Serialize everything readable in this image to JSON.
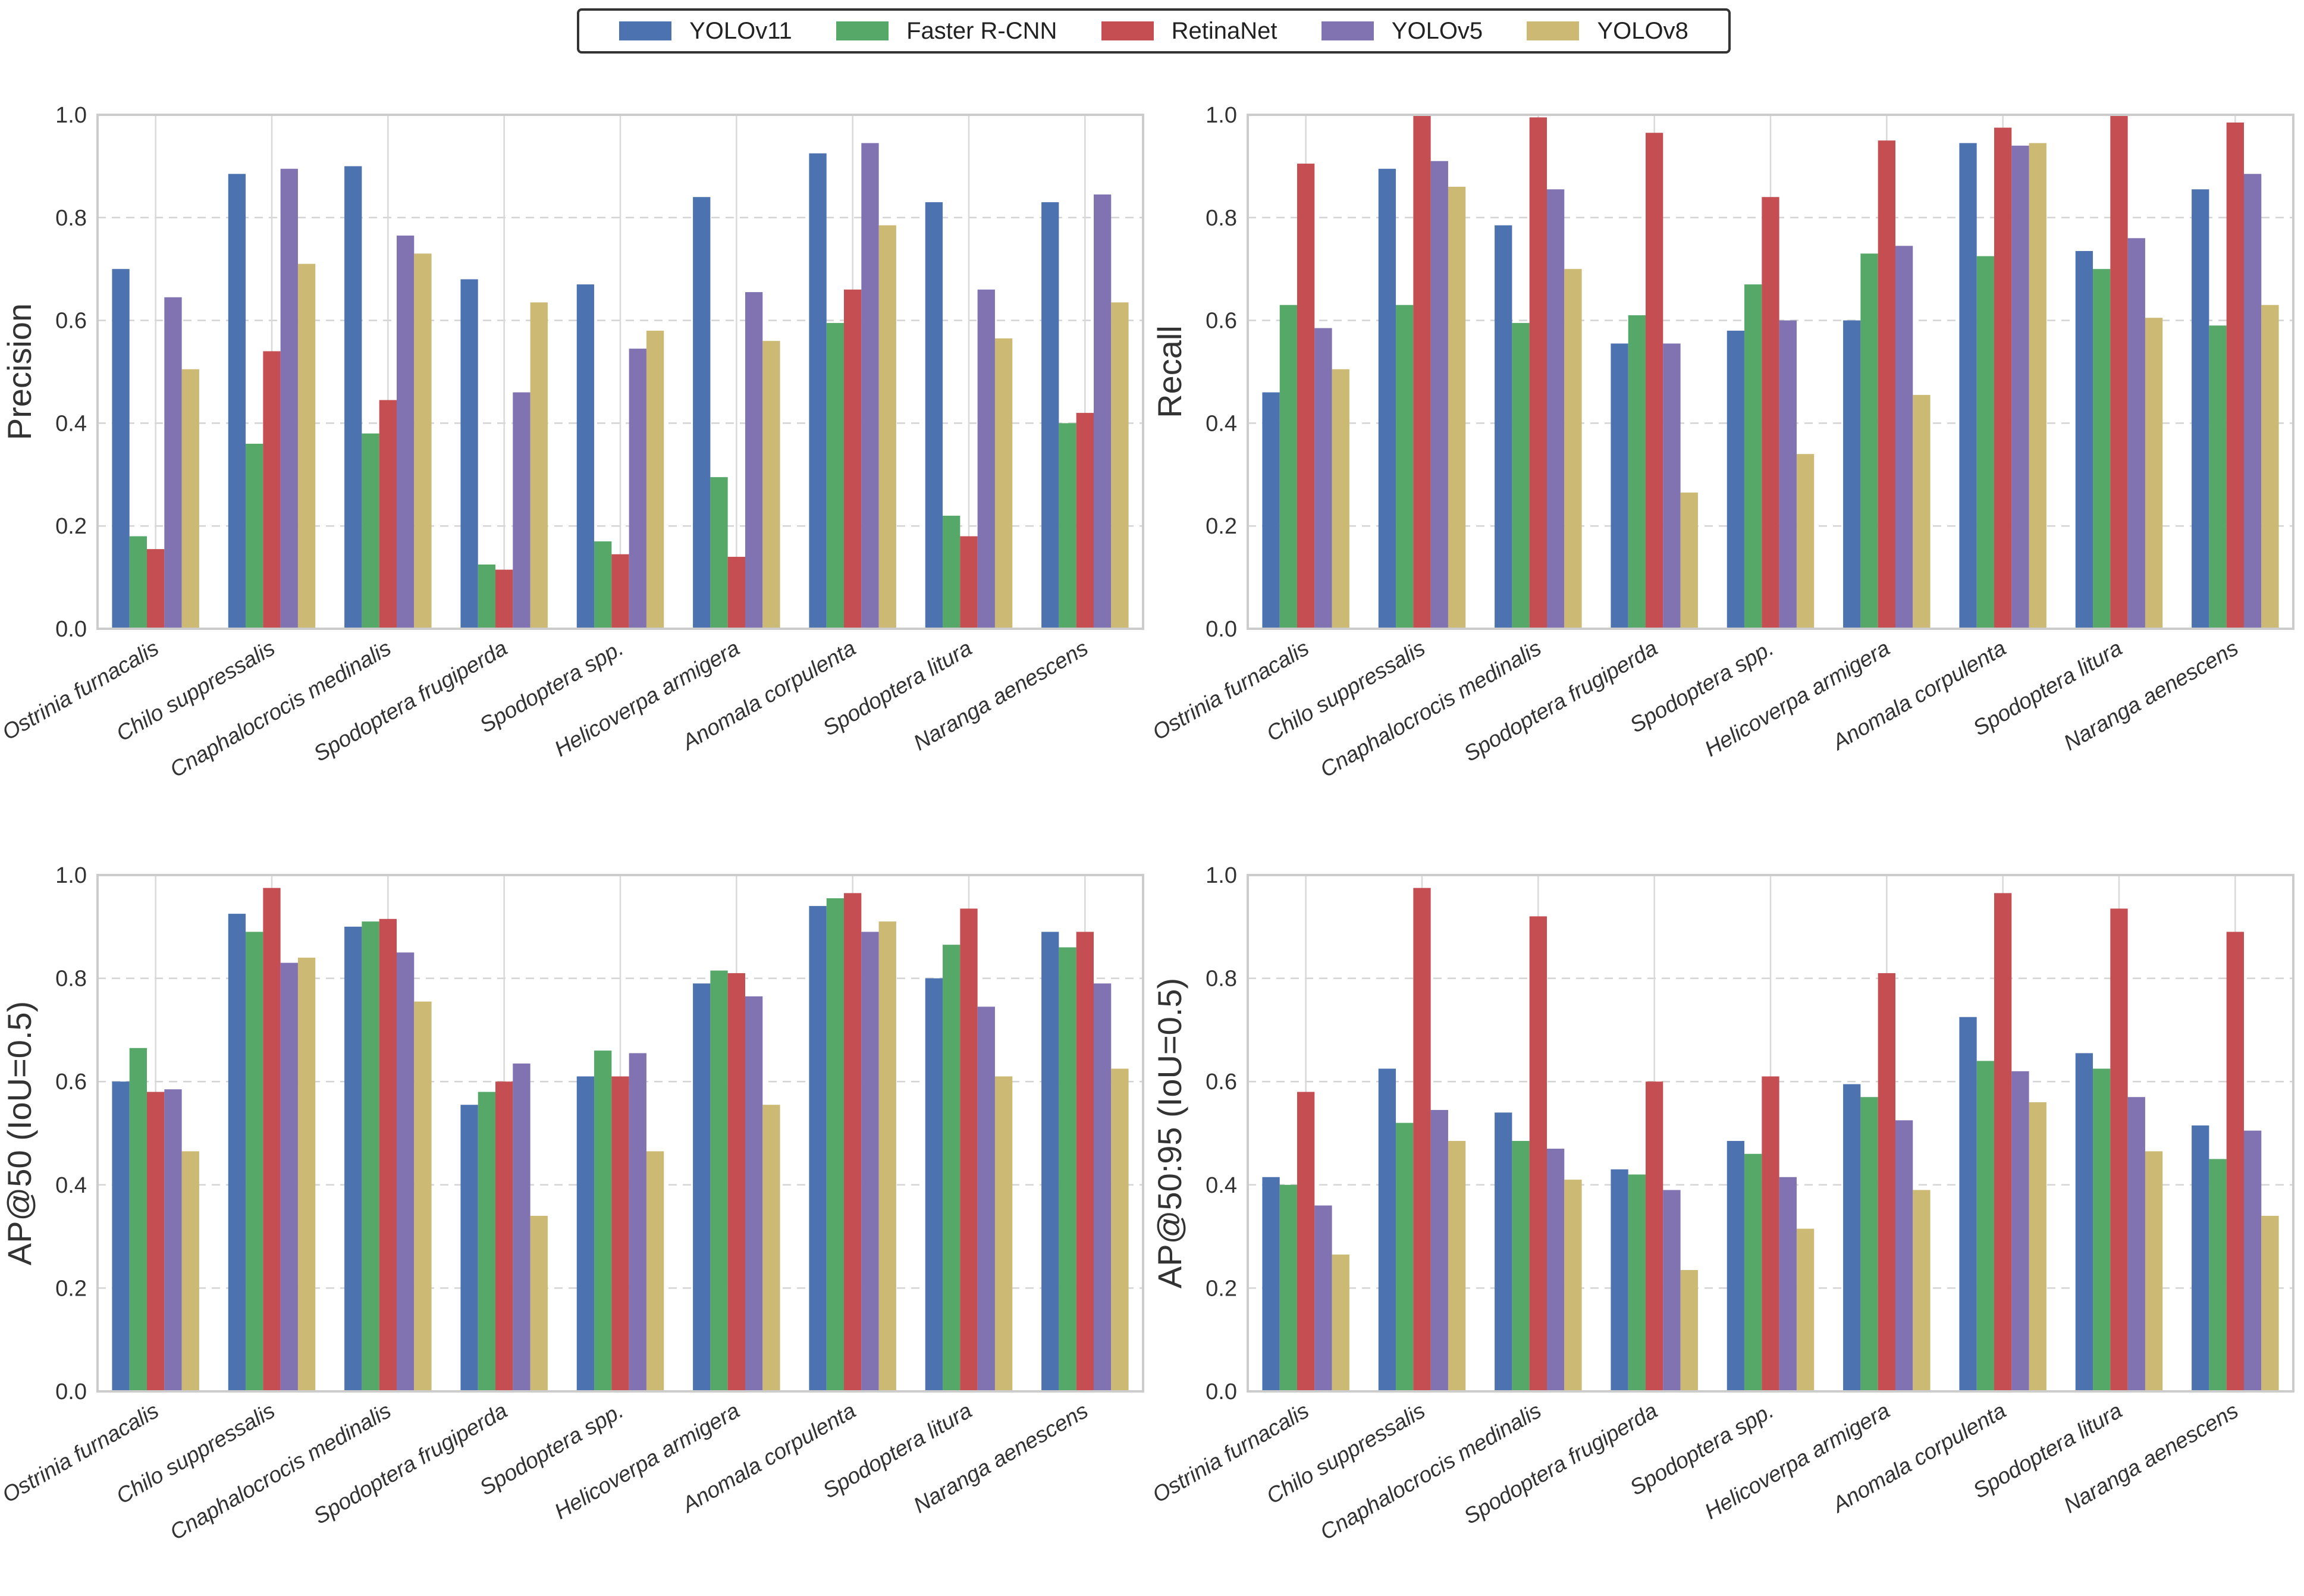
{
  "legend": {
    "items": [
      {
        "name": "YOLOv11",
        "color": "#4C72B0"
      },
      {
        "name": "Faster R-CNN",
        "color": "#55A868"
      },
      {
        "name": "RetinaNet",
        "color": "#C44E52"
      },
      {
        "name": "YOLOv5",
        "color": "#8172B2"
      },
      {
        "name": "YOLOv8",
        "color": "#CCB974"
      }
    ]
  },
  "chart_data": [
    {
      "type": "bar",
      "ylabel": "Precision",
      "ylim": [
        0,
        1.0
      ],
      "yticks": [
        "0.0",
        "0.2",
        "0.4",
        "0.6",
        "0.8",
        "1.0"
      ],
      "categories": [
        "Ostrinia furnacalis",
        "Chilo suppressalis",
        "Cnaphalocrocis medinalis",
        "Spodoptera frugiperda",
        "Spodoptera spp.",
        "Helicoverpa armigera",
        "Anomala corpulenta",
        "Spodoptera litura",
        "Naranga aenescens"
      ],
      "series": [
        {
          "name": "YOLOv11",
          "values": [
            0.7,
            0.885,
            0.9,
            0.68,
            0.67,
            0.84,
            0.925,
            0.83,
            0.83
          ]
        },
        {
          "name": "Faster R-CNN",
          "values": [
            0.18,
            0.36,
            0.38,
            0.125,
            0.17,
            0.295,
            0.595,
            0.22,
            0.4
          ]
        },
        {
          "name": "RetinaNet",
          "values": [
            0.155,
            0.54,
            0.445,
            0.115,
            0.145,
            0.14,
            0.66,
            0.18,
            0.42
          ]
        },
        {
          "name": "YOLOv5",
          "values": [
            0.645,
            0.895,
            0.765,
            0.46,
            0.545,
            0.655,
            0.945,
            0.66,
            0.845
          ]
        },
        {
          "name": "YOLOv8",
          "values": [
            0.505,
            0.71,
            0.73,
            0.635,
            0.58,
            0.56,
            0.785,
            0.565,
            0.635
          ]
        }
      ]
    },
    {
      "type": "bar",
      "ylabel": "Recall",
      "ylim": [
        0,
        1.0
      ],
      "yticks": [
        "0.0",
        "0.2",
        "0.4",
        "0.6",
        "0.8",
        "1.0"
      ],
      "categories": [
        "Ostrinia furnacalis",
        "Chilo suppressalis",
        "Cnaphalocrocis medinalis",
        "Spodoptera frugiperda",
        "Spodoptera spp.",
        "Helicoverpa armigera",
        "Anomala corpulenta",
        "Spodoptera litura",
        "Naranga aenescens"
      ],
      "series": [
        {
          "name": "YOLOv11",
          "values": [
            0.46,
            0.895,
            0.785,
            0.555,
            0.58,
            0.6,
            0.945,
            0.735,
            0.855
          ]
        },
        {
          "name": "Faster R-CNN",
          "values": [
            0.63,
            0.63,
            0.595,
            0.61,
            0.67,
            0.73,
            0.725,
            0.7,
            0.59
          ]
        },
        {
          "name": "RetinaNet",
          "values": [
            0.905,
            1.0,
            0.995,
            0.965,
            0.84,
            0.95,
            0.975,
            1.0,
            0.985
          ]
        },
        {
          "name": "YOLOv5",
          "values": [
            0.585,
            0.91,
            0.855,
            0.555,
            0.6,
            0.745,
            0.94,
            0.76,
            0.885
          ]
        },
        {
          "name": "YOLOv8",
          "values": [
            0.505,
            0.86,
            0.7,
            0.265,
            0.34,
            0.455,
            0.945,
            0.605,
            0.63
          ]
        }
      ]
    },
    {
      "type": "bar",
      "ylabel": "AP@50 (IoU=0.5)",
      "ylim": [
        0,
        1.0
      ],
      "yticks": [
        "0.0",
        "0.2",
        "0.4",
        "0.6",
        "0.8",
        "1.0"
      ],
      "categories": [
        "Ostrinia furnacalis",
        "Chilo suppressalis",
        "Cnaphalocrocis medinalis",
        "Spodoptera frugiperda",
        "Spodoptera spp.",
        "Helicoverpa armigera",
        "Anomala corpulenta",
        "Spodoptera litura",
        "Naranga aenescens"
      ],
      "series": [
        {
          "name": "YOLOv11",
          "values": [
            0.6,
            0.925,
            0.9,
            0.555,
            0.61,
            0.79,
            0.94,
            0.8,
            0.89
          ]
        },
        {
          "name": "Faster R-CNN",
          "values": [
            0.665,
            0.89,
            0.91,
            0.58,
            0.66,
            0.815,
            0.955,
            0.865,
            0.86
          ]
        },
        {
          "name": "RetinaNet",
          "values": [
            0.58,
            0.975,
            0.915,
            0.6,
            0.61,
            0.81,
            0.965,
            0.935,
            0.89
          ]
        },
        {
          "name": "YOLOv5",
          "values": [
            0.585,
            0.83,
            0.85,
            0.635,
            0.655,
            0.765,
            0.89,
            0.745,
            0.79
          ]
        },
        {
          "name": "YOLOv8",
          "values": [
            0.465,
            0.84,
            0.755,
            0.34,
            0.465,
            0.555,
            0.91,
            0.61,
            0.625
          ]
        }
      ]
    },
    {
      "type": "bar",
      "ylabel": "AP@50:95 (IoU=0.5)",
      "ylim": [
        0,
        1.0
      ],
      "yticks": [
        "0.0",
        "0.2",
        "0.4",
        "0.6",
        "0.8",
        "1.0"
      ],
      "categories": [
        "Ostrinia furnacalis",
        "Chilo suppressalis",
        "Cnaphalocrocis medinalis",
        "Spodoptera frugiperda",
        "Spodoptera spp.",
        "Helicoverpa armigera",
        "Anomala corpulenta",
        "Spodoptera litura",
        "Naranga aenescens"
      ],
      "series": [
        {
          "name": "YOLOv11",
          "values": [
            0.415,
            0.625,
            0.54,
            0.43,
            0.485,
            0.595,
            0.725,
            0.655,
            0.515
          ]
        },
        {
          "name": "Faster R-CNN",
          "values": [
            0.4,
            0.52,
            0.485,
            0.42,
            0.46,
            0.57,
            0.64,
            0.625,
            0.45
          ]
        },
        {
          "name": "RetinaNet",
          "values": [
            0.58,
            0.975,
            0.92,
            0.6,
            0.61,
            0.81,
            0.965,
            0.935,
            0.89
          ]
        },
        {
          "name": "YOLOv5",
          "values": [
            0.36,
            0.545,
            0.47,
            0.39,
            0.415,
            0.525,
            0.62,
            0.57,
            0.505
          ]
        },
        {
          "name": "YOLOv8",
          "values": [
            0.265,
            0.485,
            0.41,
            0.235,
            0.315,
            0.39,
            0.56,
            0.465,
            0.34
          ]
        }
      ]
    }
  ]
}
